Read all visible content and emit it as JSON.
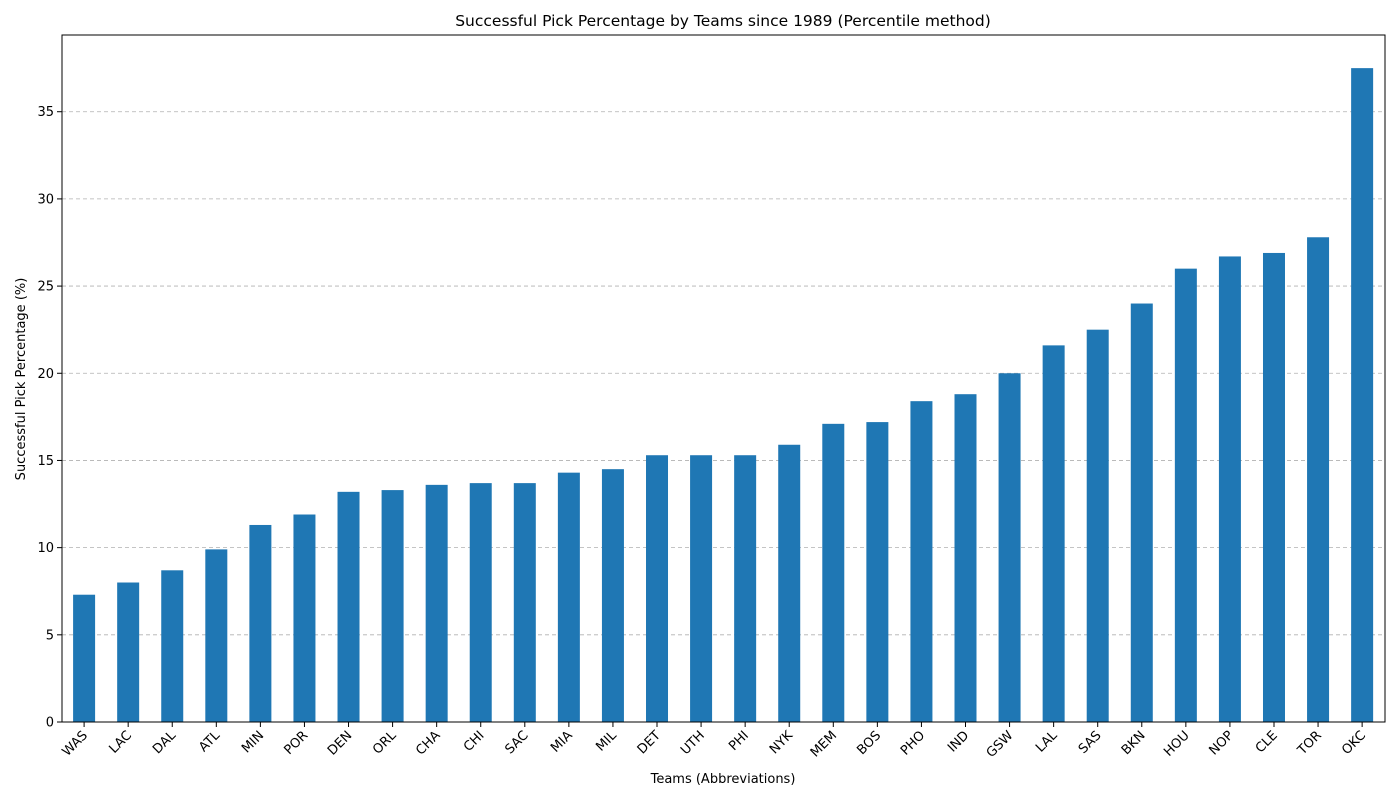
{
  "chart_data": {
    "type": "bar",
    "title": "Successful Pick Percentage by Teams since 1989 (Percentile method)",
    "xlabel": "Teams (Abbreviations)",
    "ylabel": "Successful Pick Percentage (%)",
    "categories": [
      "WAS",
      "LAC",
      "DAL",
      "ATL",
      "MIN",
      "POR",
      "DEN",
      "ORL",
      "CHA",
      "CHI",
      "SAC",
      "MIA",
      "MIL",
      "DET",
      "UTH",
      "PHI",
      "NYK",
      "MEM",
      "BOS",
      "PHO",
      "IND",
      "GSW",
      "LAL",
      "SAS",
      "BKN",
      "HOU",
      "NOP",
      "CLE",
      "TOR",
      "OKC"
    ],
    "values": [
      7.3,
      8.0,
      8.7,
      9.9,
      11.3,
      11.9,
      13.2,
      13.3,
      13.6,
      13.7,
      13.7,
      14.3,
      14.5,
      15.3,
      15.3,
      15.3,
      15.9,
      17.1,
      17.2,
      18.4,
      18.8,
      20.0,
      21.6,
      22.5,
      24.0,
      26.0,
      26.7,
      26.9,
      27.8,
      37.5
    ],
    "ylim": [
      0,
      39.4
    ],
    "yticks": [
      0,
      5,
      10,
      15,
      20,
      25,
      30,
      35
    ],
    "grid": "y-dashed",
    "bar_color": "#1f77b4"
  }
}
